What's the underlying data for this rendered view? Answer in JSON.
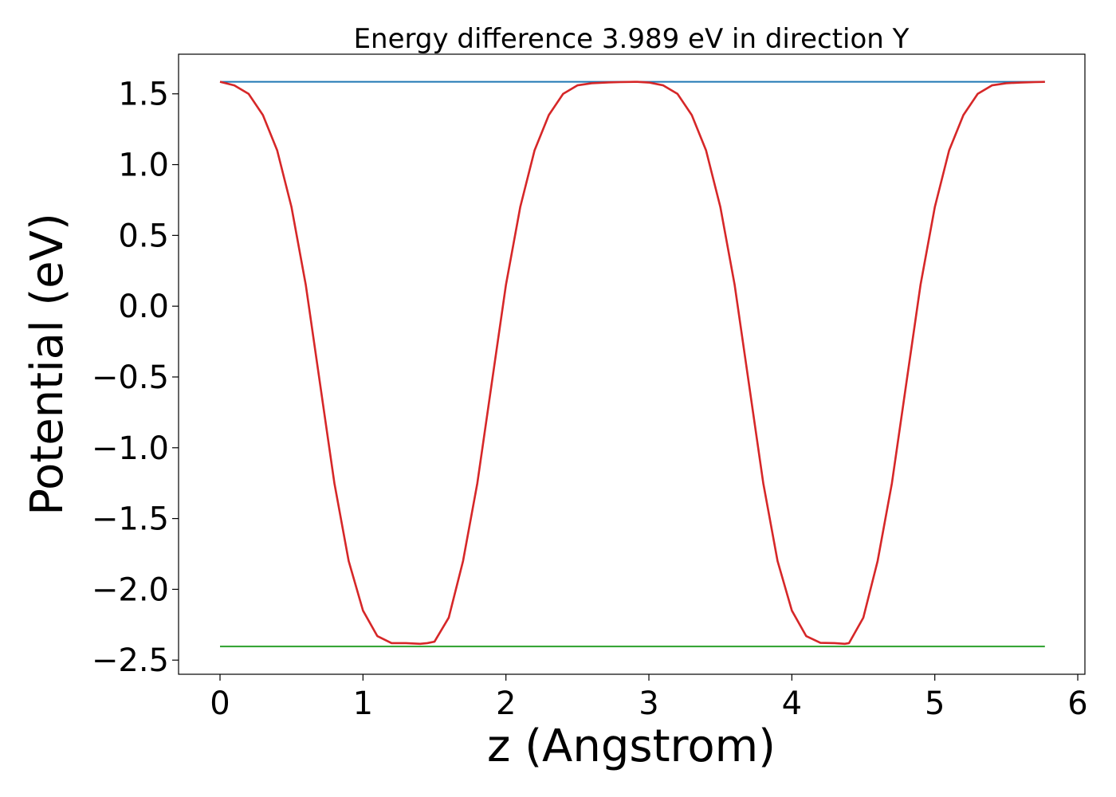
{
  "chart_data": {
    "type": "line",
    "title": "Energy difference 3.989 eV in direction Y",
    "xlabel": "z (Angstrom)",
    "ylabel": "Potential (eV)",
    "xlim": [
      -0.29,
      6.05
    ],
    "ylim": [
      -2.6,
      1.78
    ],
    "xticks": [
      0,
      1,
      2,
      3,
      4,
      5,
      6
    ],
    "xtick_labels": [
      "0",
      "1",
      "2",
      "3",
      "4",
      "5",
      "6"
    ],
    "yticks": [
      -2.5,
      -2.0,
      -1.5,
      -1.0,
      -0.5,
      0.0,
      0.5,
      1.0,
      1.5
    ],
    "ytick_labels": [
      "−2.5",
      "−2.0",
      "−1.5",
      "−1.0",
      "−0.5",
      "0.0",
      "0.5",
      "1.0",
      "1.5"
    ],
    "grid": false,
    "colors": {
      "potential": "#d62728",
      "max_level": "#1f77b4",
      "min_level": "#2ca02c"
    },
    "series": [
      {
        "key": "max_level",
        "x": [
          0,
          5.77
        ],
        "y": [
          1.585,
          1.585
        ]
      },
      {
        "key": "min_level",
        "x": [
          0,
          5.77
        ],
        "y": [
          -2.404,
          -2.404
        ]
      },
      {
        "key": "potential",
        "x": [
          0.0,
          0.1,
          0.2,
          0.3,
          0.4,
          0.5,
          0.6,
          0.7,
          0.8,
          0.9,
          1.0,
          1.1,
          1.2,
          1.3,
          1.4,
          1.45,
          1.5,
          1.6,
          1.7,
          1.8,
          1.9,
          2.0,
          2.1,
          2.2,
          2.3,
          2.4,
          2.5,
          2.6,
          2.7,
          2.8,
          2.9,
          2.92,
          3.0,
          3.1,
          3.2,
          3.3,
          3.4,
          3.5,
          3.6,
          3.7,
          3.8,
          3.9,
          4.0,
          4.1,
          4.2,
          4.3,
          4.37,
          4.4,
          4.5,
          4.6,
          4.7,
          4.8,
          4.9,
          5.0,
          5.1,
          5.2,
          5.3,
          5.4,
          5.5,
          5.6,
          5.7,
          5.77
        ],
        "y": [
          1.585,
          1.56,
          1.5,
          1.35,
          1.1,
          0.7,
          0.15,
          -0.55,
          -1.25,
          -1.8,
          -2.15,
          -2.33,
          -2.38,
          -2.38,
          -2.385,
          -2.38,
          -2.37,
          -2.2,
          -1.8,
          -1.25,
          -0.55,
          0.15,
          0.7,
          1.1,
          1.35,
          1.5,
          1.56,
          1.575,
          1.58,
          1.583,
          1.585,
          1.585,
          1.58,
          1.56,
          1.5,
          1.35,
          1.1,
          0.7,
          0.15,
          -0.55,
          -1.25,
          -1.8,
          -2.15,
          -2.33,
          -2.378,
          -2.38,
          -2.385,
          -2.38,
          -2.2,
          -1.8,
          -1.25,
          -0.55,
          0.15,
          0.7,
          1.1,
          1.35,
          1.5,
          1.56,
          1.575,
          1.58,
          1.583,
          1.585
        ]
      }
    ]
  }
}
